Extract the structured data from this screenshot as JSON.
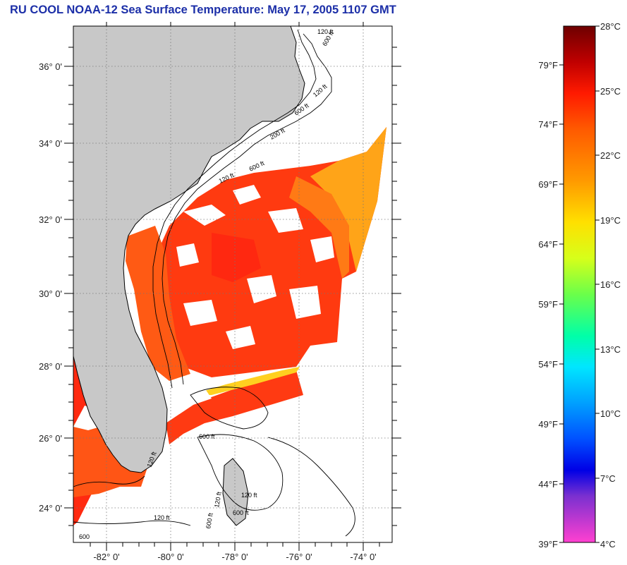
{
  "title": "RU COOL  NOAA-12  Sea Surface Temperature:  May 17, 2005 1107 GMT",
  "map": {
    "lat_labels": [
      "36° 0'",
      "34° 0'",
      "32° 0'",
      "30° 0'",
      "28° 0'",
      "26° 0'",
      "24° 0'"
    ],
    "lon_labels": [
      "-82° 0'",
      "-80° 0'",
      "-78° 0'",
      "-76° 0'",
      "-74° 0'"
    ],
    "depth_labels": [
      "120 ft",
      "600 ft",
      "120 ft",
      "600 ft",
      "200 ft",
      "120 ft",
      "600 ft",
      "120 ft",
      "600 ft",
      "120 ft",
      "600 ft",
      "120 ft",
      "600 ft",
      "120 ft",
      "600"
    ],
    "colors": {
      "land": "#c8c8c8",
      "ocean": "#ffffff",
      "coast": "#000000"
    }
  },
  "colorbar": {
    "celsius": [
      "28°C",
      "25°C",
      "22°C",
      "19°C",
      "16°C",
      "13°C",
      "10°C",
      "7°C",
      "4°C"
    ],
    "fahrenheit": [
      "79°F",
      "74°F",
      "69°F",
      "64°F",
      "59°F",
      "54°F",
      "49°F",
      "44°F",
      "39°F"
    ],
    "colors": [
      "#7a0000",
      "#ff1a00",
      "#ff7a00",
      "#ffe600",
      "#7aff3a",
      "#00e0e0",
      "#0070ff",
      "#0000e6",
      "#ff40d0"
    ]
  }
}
